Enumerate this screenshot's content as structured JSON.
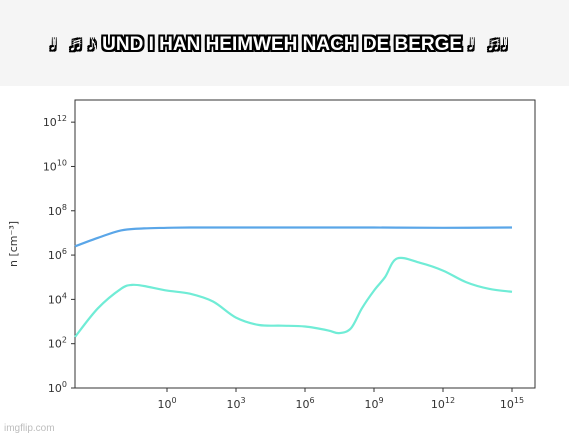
{
  "caption": "♩♬♪ UND I HAN HEIMWEH NACH DE BERGE ♩♫♩",
  "watermark": "imgflip.com",
  "chart_data": {
    "type": "line",
    "xscale": "log",
    "yscale": "log",
    "xlim": [
      0.0001,
      1e+16
    ],
    "ylim": [
      1,
      10000000000000.0
    ],
    "xticks": [
      {
        "value": 1,
        "base": "10",
        "exp": "0"
      },
      {
        "value": 1000,
        "base": "10",
        "exp": "3"
      },
      {
        "value": 1000000,
        "base": "10",
        "exp": "6"
      },
      {
        "value": 1000000000,
        "base": "10",
        "exp": "9"
      },
      {
        "value": 1000000000000,
        "base": "10",
        "exp": "12"
      },
      {
        "value": 1000000000000000,
        "base": "10",
        "exp": "15"
      }
    ],
    "yticks": [
      {
        "value": 1,
        "base": "10",
        "exp": "0"
      },
      {
        "value": 100,
        "base": "10",
        "exp": "2"
      },
      {
        "value": 10000,
        "base": "10",
        "exp": "4"
      },
      {
        "value": 1000000,
        "base": "10",
        "exp": "6"
      },
      {
        "value": 100000000,
        "base": "10",
        "exp": "8"
      },
      {
        "value": 10000000000,
        "base": "10",
        "exp": "10"
      },
      {
        "value": 1000000000000,
        "base": "10",
        "exp": "12"
      }
    ],
    "ylabel": "n [cm⁻³]",
    "xlabel": "",
    "title": "",
    "grid": false,
    "series": [
      {
        "color": "#5aa6e8",
        "x": [
          0.0001,
          0.001,
          0.01,
          0.1,
          1,
          10,
          1000,
          1000000,
          1000000000,
          1000000000000,
          1000000000000000
        ],
        "y": [
          2500000,
          6000000,
          13000000,
          16000000,
          17000000,
          17500000,
          17500000,
          17500000,
          17500000,
          17000000,
          17500000
        ]
      },
      {
        "color": "#70ecd6",
        "x": [
          0.0001,
          0.001,
          0.01,
          0.03,
          0.1,
          1,
          10,
          100,
          1000,
          10000,
          100000,
          1000000,
          10000000,
          30000000,
          100000000,
          300000000,
          1000000000,
          3000000000,
          10000000000,
          100000000000,
          1000000000000,
          10000000000000,
          100000000000000,
          1000000000000000
        ],
        "y": [
          200,
          4000,
          30000,
          45000,
          40000,
          25000,
          18000,
          8000,
          1500,
          700,
          650,
          600,
          400,
          300,
          500,
          4000,
          25000,
          100000,
          700000,
          450000,
          200000,
          60000,
          30000,
          22000
        ]
      }
    ]
  }
}
